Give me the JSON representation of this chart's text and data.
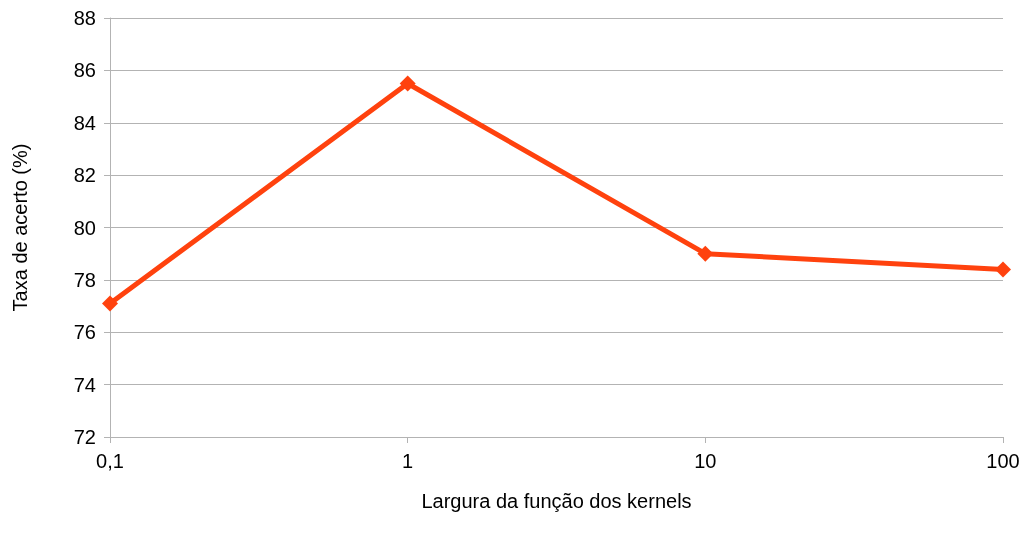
{
  "chart_data": {
    "type": "line",
    "xlabel": "Largura da função dos kernels",
    "ylabel": "Taxa de acerto (%)",
    "categories": [
      "0,1",
      "1",
      "10",
      "100"
    ],
    "series": [
      {
        "color": "#ff420e",
        "values": [
          77.1,
          85.5,
          79.0,
          78.4
        ]
      }
    ],
    "ylim": [
      72,
      88
    ],
    "yticks": [
      72,
      74,
      76,
      78,
      80,
      82,
      84,
      86,
      88
    ],
    "grid": "y",
    "marker": "diamond",
    "line_style": "solid"
  }
}
